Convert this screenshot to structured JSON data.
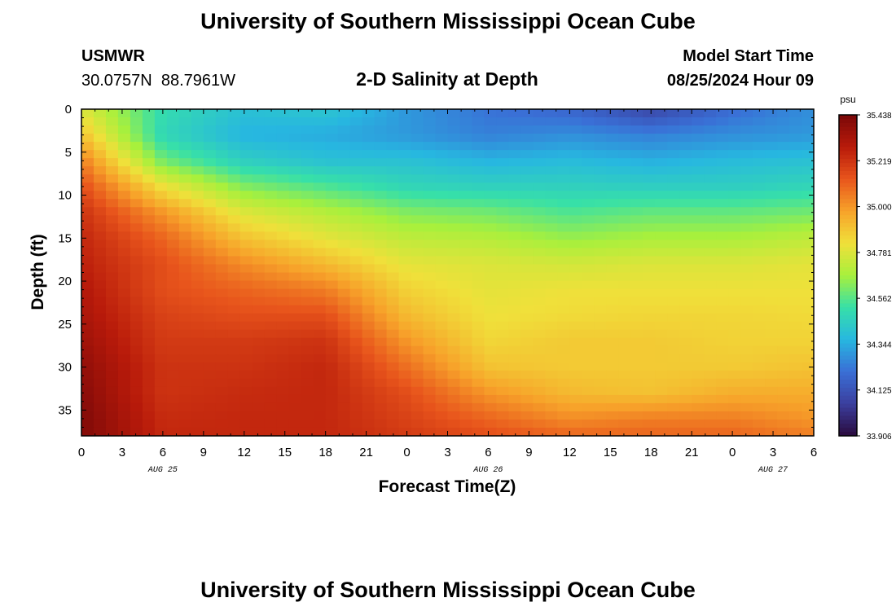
{
  "header": {
    "title": "University of Southern Mississippi Ocean Cube",
    "station_name": "USMWR",
    "station_coords": "30.0757N  88.7961W",
    "plot_title": "2-D Salinity at Depth",
    "model_start_label": "Model Start Time",
    "model_start_value": "08/25/2024 Hour 09"
  },
  "footer": {
    "title": "University of Southern Mississippi Ocean Cube"
  },
  "chart_data": {
    "type": "heatmap",
    "title": "2-D Salinity at Depth",
    "xlabel": "Forecast Time(Z)",
    "ylabel": "Depth (ft)",
    "x_ticks": [
      "0",
      "3",
      "6",
      "9",
      "12",
      "15",
      "18",
      "21",
      "0",
      "3",
      "6",
      "9",
      "12",
      "15",
      "18",
      "21",
      "0",
      "3",
      "6"
    ],
    "date_labels": [
      {
        "label": "AUG 25",
        "at_hour": 6
      },
      {
        "label": "AUG 26",
        "at_hour": 30
      },
      {
        "label": "AUG 27",
        "at_hour": 51
      }
    ],
    "xlim_hours": [
      0,
      54
    ],
    "y_ticks": [
      "0",
      "5",
      "10",
      "15",
      "20",
      "25",
      "30",
      "35"
    ],
    "ylim_ft": [
      0,
      38
    ],
    "y_inverted": true,
    "colorbar": {
      "unit": "psu",
      "min": 33.906,
      "max": 35.438,
      "tick_labels": [
        "35.438",
        "35.219",
        "35.000",
        "34.781",
        "34.562",
        "34.344",
        "34.125",
        "33.906"
      ],
      "colors": [
        "#2a0a3d",
        "#3b3f9e",
        "#3a6fd6",
        "#27b7e0",
        "#37e0a8",
        "#a8f03c",
        "#f0e03a",
        "#f7a22a",
        "#e8551c",
        "#b81a0a",
        "#7a0808"
      ]
    },
    "colormap": "turbo-like (dark purple low to dark red high)",
    "columns_hours": [
      0,
      6,
      12,
      18,
      24,
      30,
      36,
      42,
      48,
      54
    ],
    "rows_ft": [
      0,
      3,
      6,
      9,
      12,
      15,
      18,
      21,
      24,
      27,
      30,
      33,
      36,
      38
    ],
    "values": [
      [
        34.78,
        34.5,
        34.4,
        34.42,
        34.3,
        34.22,
        34.18,
        34.08,
        34.2,
        34.28
      ],
      [
        34.9,
        34.48,
        34.36,
        34.34,
        34.3,
        34.25,
        34.28,
        34.25,
        34.28,
        34.3
      ],
      [
        35.05,
        34.6,
        34.45,
        34.4,
        34.4,
        34.36,
        34.38,
        34.35,
        34.38,
        34.4
      ],
      [
        35.15,
        34.82,
        34.62,
        34.55,
        34.48,
        34.46,
        34.46,
        34.45,
        34.45,
        34.48
      ],
      [
        35.22,
        35.0,
        34.78,
        34.7,
        34.62,
        34.6,
        34.55,
        34.58,
        34.58,
        34.6
      ],
      [
        35.25,
        35.1,
        34.9,
        34.8,
        34.72,
        34.7,
        34.65,
        34.68,
        34.68,
        34.72
      ],
      [
        35.27,
        35.15,
        35.02,
        34.92,
        34.8,
        34.78,
        34.76,
        34.78,
        34.78,
        34.8
      ],
      [
        35.3,
        35.15,
        35.1,
        35.05,
        34.86,
        34.8,
        34.82,
        34.82,
        34.82,
        34.82
      ],
      [
        35.32,
        35.18,
        35.15,
        35.15,
        34.92,
        34.82,
        34.84,
        34.85,
        34.85,
        34.84
      ],
      [
        35.35,
        35.2,
        35.2,
        35.22,
        35.0,
        34.85,
        34.88,
        34.88,
        34.86,
        34.86
      ],
      [
        35.38,
        35.22,
        35.22,
        35.25,
        35.08,
        34.9,
        34.88,
        34.88,
        34.88,
        34.9
      ],
      [
        35.4,
        35.22,
        35.24,
        35.25,
        35.15,
        35.0,
        34.92,
        34.9,
        34.95,
        34.95
      ],
      [
        35.42,
        35.24,
        35.25,
        35.25,
        35.18,
        35.1,
        35.02,
        35.05,
        35.05,
        35.0
      ],
      [
        35.42,
        35.25,
        35.25,
        35.25,
        35.2,
        35.15,
        35.1,
        35.1,
        35.1,
        35.05
      ]
    ]
  }
}
